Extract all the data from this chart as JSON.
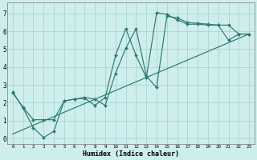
{
  "xlabel": "Humidex (Indice chaleur)",
  "background_color": "#ceeeed",
  "grid_color": "#aad4d2",
  "line_color": "#2d7a6e",
  "xlim": [
    -0.5,
    23.5
  ],
  "ylim": [
    -0.3,
    7.6
  ],
  "xticks": [
    0,
    1,
    2,
    3,
    4,
    5,
    6,
    7,
    8,
    9,
    10,
    11,
    12,
    13,
    14,
    15,
    16,
    17,
    18,
    19,
    20,
    21,
    22,
    23
  ],
  "yticks": [
    0,
    1,
    2,
    3,
    4,
    5,
    6,
    7
  ],
  "line1_x": [
    0,
    1,
    2,
    3,
    4,
    5,
    6,
    7,
    8,
    9,
    10,
    11,
    12,
    13,
    14,
    15,
    16,
    17,
    18,
    19,
    20,
    21,
    22,
    23
  ],
  "line1_y": [
    2.6,
    1.7,
    0.6,
    0.05,
    0.4,
    2.1,
    2.2,
    2.25,
    1.85,
    2.3,
    4.65,
    6.15,
    4.65,
    3.4,
    7.05,
    6.95,
    6.65,
    6.4,
    6.4,
    6.35,
    6.35,
    5.5,
    5.85,
    5.85
  ],
  "line2_x": [
    0,
    1,
    2,
    3,
    4,
    5,
    6,
    7,
    8,
    9,
    10,
    11,
    12,
    13,
    14,
    15,
    16,
    17,
    18,
    19,
    20,
    21,
    22,
    23
  ],
  "line2_y": [
    2.55,
    1.75,
    1.05,
    1.05,
    1.05,
    2.1,
    2.2,
    2.3,
    2.2,
    1.85,
    3.65,
    5.05,
    6.15,
    3.5,
    2.85,
    6.85,
    6.75,
    6.5,
    6.45,
    6.4,
    6.35,
    6.35,
    5.85,
    5.85
  ],
  "line3_x": [
    0,
    23
  ],
  "line3_y": [
    0.25,
    5.85
  ]
}
